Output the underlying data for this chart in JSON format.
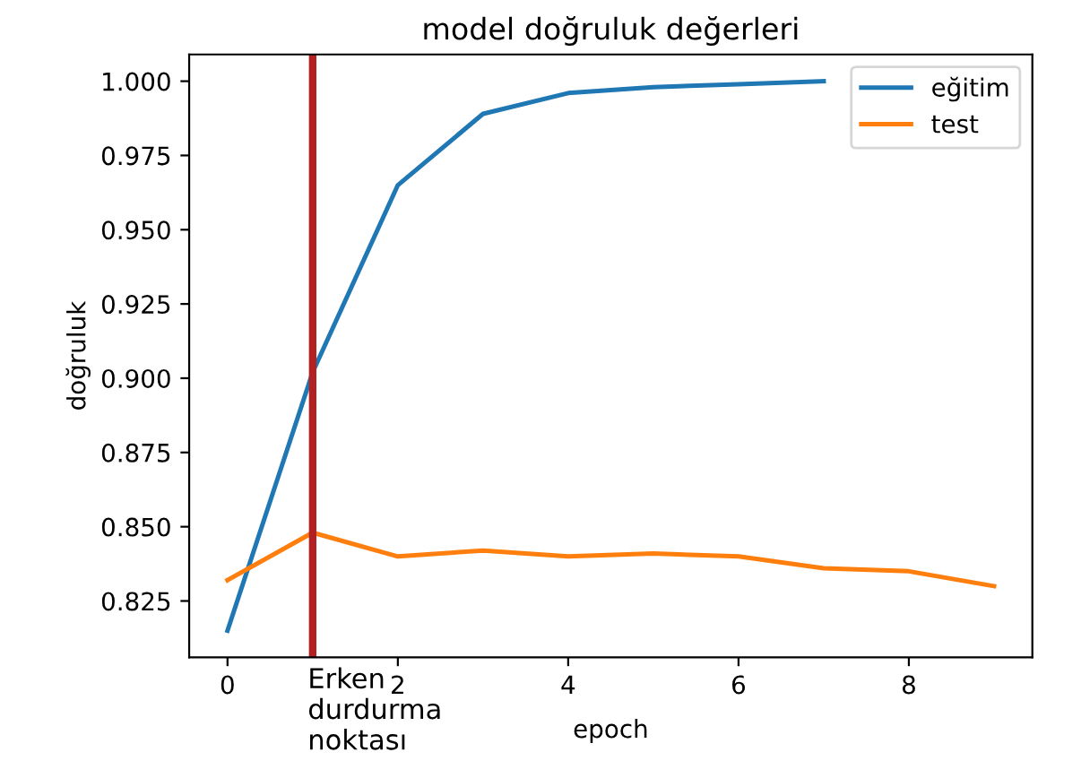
{
  "chart_data": {
    "type": "line",
    "title": "model doğruluk değerleri",
    "xlabel": "epoch",
    "ylabel": "doğruluk",
    "x": [
      0,
      1,
      2,
      3,
      4,
      5,
      6,
      7,
      8,
      9
    ],
    "series": [
      {
        "name": "eğitim",
        "color": "#1f77b4",
        "values": [
          0.815,
          0.902,
          0.965,
          0.989,
          0.996,
          0.998,
          0.999,
          1.0,
          null,
          null
        ]
      },
      {
        "name": "test",
        "color": "#ff7f0e",
        "values": [
          0.832,
          0.848,
          0.84,
          0.842,
          0.84,
          0.841,
          0.84,
          0.836,
          0.835,
          0.83
        ]
      }
    ],
    "xlim": [
      -0.45,
      9.45
    ],
    "ylim": [
      0.806,
      1.009
    ],
    "xticks": [
      0,
      2,
      4,
      6,
      8
    ],
    "yticks": [
      {
        "value": 0.825,
        "label": "0.825"
      },
      {
        "value": 0.85,
        "label": "0.850"
      },
      {
        "value": 0.875,
        "label": "0.875"
      },
      {
        "value": 0.9,
        "label": "0.900"
      },
      {
        "value": 0.925,
        "label": "0.925"
      },
      {
        "value": 0.95,
        "label": "0.950"
      },
      {
        "value": 0.975,
        "label": "0.975"
      },
      {
        "value": 1.0,
        "label": "1.000"
      }
    ],
    "ref_lines": [
      {
        "axis": "x",
        "value": 1,
        "label": "Erken\ndurdurma\nnoktası",
        "color": "#b22222"
      }
    ],
    "legend": "top right",
    "grid": false
  }
}
